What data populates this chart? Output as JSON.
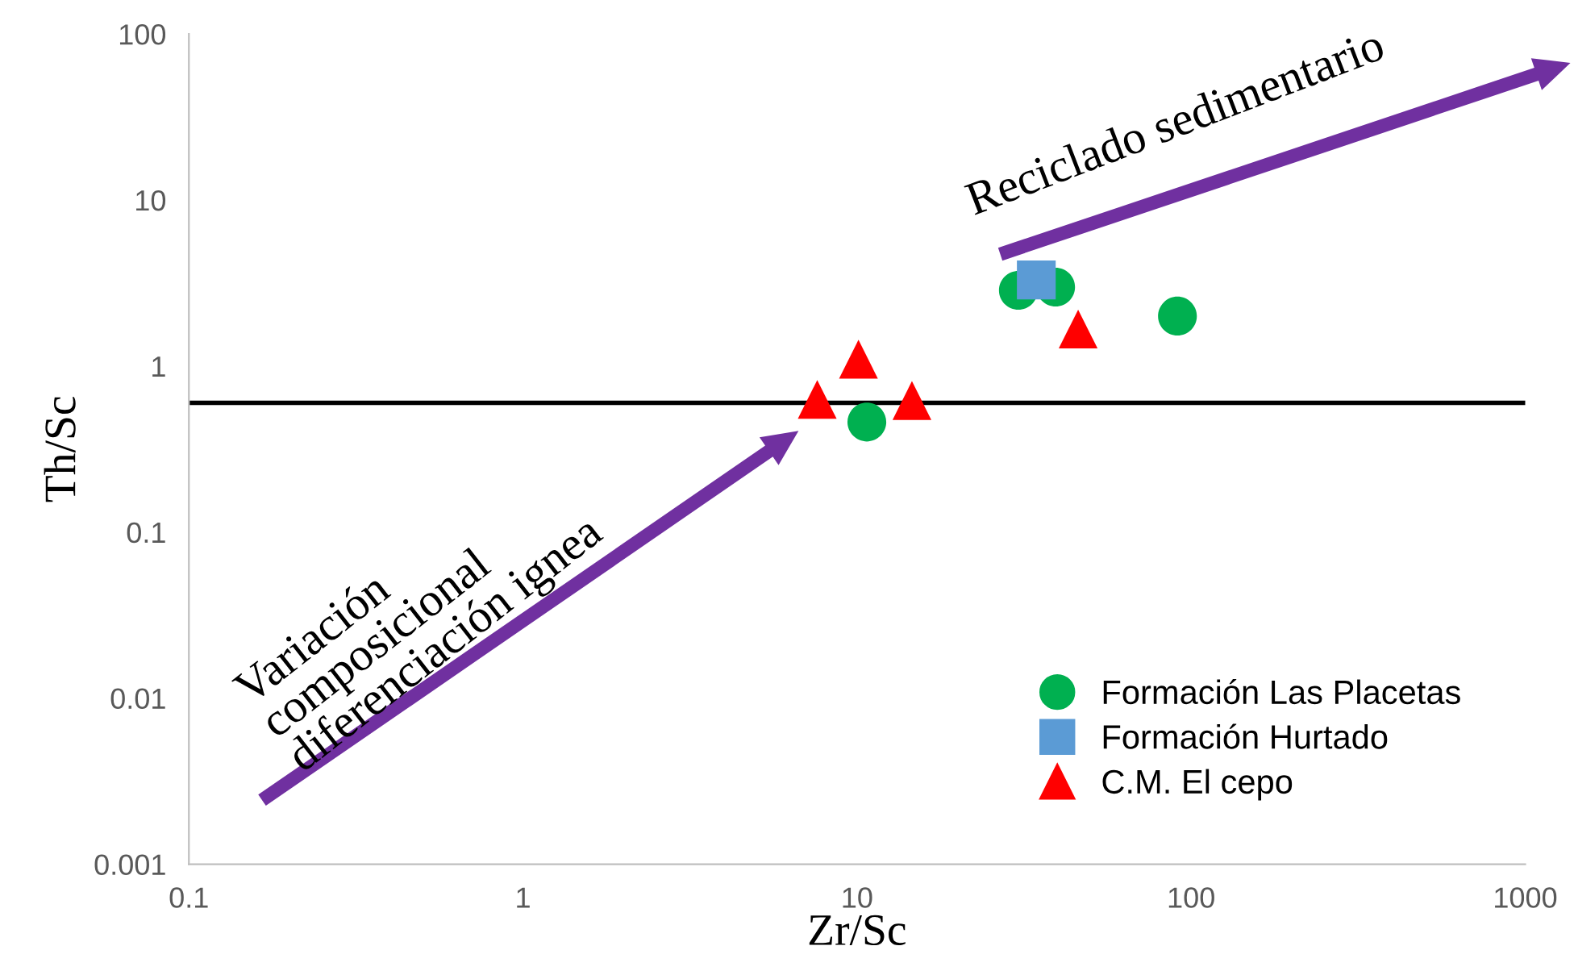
{
  "chart_data": {
    "type": "scatter",
    "xlabel": "Zr/Sc",
    "ylabel": "Th/Sc",
    "log": "xy",
    "xlim": [
      0.1,
      1000
    ],
    "ylim": [
      0.001,
      100
    ],
    "xticks": [
      0.1,
      1,
      10,
      100,
      1000
    ],
    "yticks": [
      0.001,
      0.01,
      0.1,
      1,
      10,
      100
    ],
    "grid": false,
    "legend": "bottom right",
    "series": [
      {
        "name": "Formación Las Placetas",
        "color": "#00b050",
        "marker": "circle",
        "x": [
          30.4,
          39.3,
          91,
          10.7
        ],
        "values": [
          2.86,
          2.99,
          2.0,
          0.46
        ]
      },
      {
        "name": "Formación Hurtado",
        "color": "#5b9bd5",
        "marker": "square",
        "x": [
          34.4
        ],
        "values": [
          3.3
        ]
      },
      {
        "name": "C.M. El cepo",
        "color": "#ff0000",
        "marker": "triangle",
        "x": [
          7.6,
          10.1,
          14.6,
          45.9
        ],
        "values": [
          0.63,
          1.1,
          0.62,
          1.67
        ]
      }
    ],
    "ref_lines": [
      {
        "axis": "y",
        "value": 0.6,
        "color": "#000000"
      }
    ],
    "annotations": [
      "Variación\ncomposicional\ndiferenciación ignea",
      "Reciclado sedimentario"
    ]
  }
}
